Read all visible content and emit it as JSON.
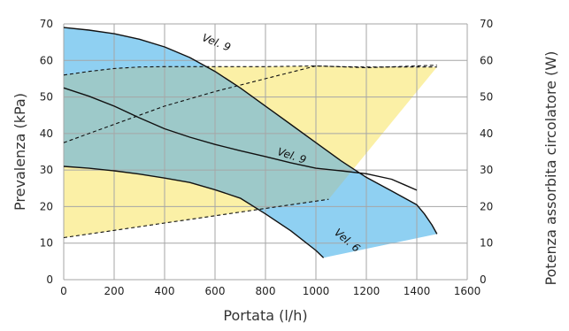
{
  "chart_data": {
    "type": "line",
    "xlabel": "Portata (l/h)",
    "ylabel": "Prevalenza (kPa)",
    "y2label": "Potenza assorbita circolatore (W)",
    "xlim": [
      0,
      1600
    ],
    "ylim": [
      0,
      70
    ],
    "y2lim": [
      0,
      70
    ],
    "xticks": [
      0,
      200,
      400,
      600,
      800,
      1000,
      1200,
      1400,
      1600
    ],
    "yticks": [
      0,
      10,
      20,
      30,
      40,
      50,
      60,
      70
    ],
    "y2ticks": [
      0,
      10,
      20,
      30,
      40,
      50,
      60,
      70
    ],
    "grid": true,
    "colors": {
      "head_fill": "#8fd0f2",
      "power_fill": "#fbf0a6",
      "overlap_fill": "#9dc9c9",
      "line": "#111111",
      "grid": "#a6a6a6"
    },
    "annotations": [
      {
        "text": "Vel. 9",
        "x": 600,
        "y": 64,
        "angle": 22
      },
      {
        "text": "Vel. 9",
        "x": 900,
        "y": 33,
        "angle": 18
      },
      {
        "text": "Vel. 6",
        "x": 1115,
        "y": 10,
        "angle": 40
      }
    ],
    "series": [
      {
        "kind": "head",
        "role": "max",
        "values": [
          [
            0,
            69
          ],
          [
            100,
            68.3
          ],
          [
            200,
            67.3
          ],
          [
            300,
            65.8
          ],
          [
            400,
            63.7
          ],
          [
            500,
            60.8
          ],
          [
            600,
            57
          ],
          [
            700,
            52.5
          ],
          [
            800,
            47.5
          ],
          [
            900,
            42.5
          ],
          [
            1000,
            37.5
          ],
          [
            1100,
            32.5
          ],
          [
            1200,
            28
          ],
          [
            1300,
            24.3
          ],
          [
            1400,
            20.5
          ],
          [
            1430,
            18
          ],
          [
            1460,
            15
          ],
          [
            1480,
            12.5
          ]
        ]
      },
      {
        "kind": "head",
        "role": "mid",
        "values": [
          [
            0,
            52.5
          ],
          [
            100,
            50.2
          ],
          [
            200,
            47.5
          ],
          [
            300,
            44.3
          ],
          [
            400,
            41.3
          ],
          [
            500,
            39
          ],
          [
            600,
            37
          ],
          [
            700,
            35.3
          ],
          [
            800,
            33.7
          ],
          [
            900,
            32
          ],
          [
            1000,
            30.5
          ],
          [
            1100,
            29.8
          ],
          [
            1200,
            29
          ],
          [
            1300,
            27.5
          ],
          [
            1350,
            26
          ],
          [
            1400,
            24.5
          ]
        ]
      },
      {
        "kind": "head",
        "role": "min",
        "values": [
          [
            0,
            31
          ],
          [
            100,
            30.5
          ],
          [
            200,
            29.8
          ],
          [
            300,
            28.9
          ],
          [
            400,
            27.8
          ],
          [
            500,
            26.6
          ],
          [
            600,
            24.6
          ],
          [
            700,
            22.3
          ],
          [
            800,
            18
          ],
          [
            900,
            13.4
          ],
          [
            1000,
            8
          ],
          [
            1030,
            6
          ]
        ]
      },
      {
        "kind": "power",
        "role": "max",
        "values": [
          [
            0,
            56
          ],
          [
            100,
            57
          ],
          [
            200,
            57.8
          ],
          [
            300,
            58.2
          ],
          [
            400,
            58.3
          ],
          [
            600,
            58.3
          ],
          [
            800,
            58.3
          ],
          [
            900,
            58.4
          ],
          [
            1000,
            58.5
          ],
          [
            1100,
            58.3
          ],
          [
            1200,
            58.2
          ],
          [
            1300,
            58.2
          ],
          [
            1400,
            58.2
          ],
          [
            1480,
            58.2
          ]
        ]
      },
      {
        "kind": "power",
        "role": "mid",
        "values": [
          [
            0,
            37.5
          ],
          [
            200,
            42.5
          ],
          [
            400,
            47.5
          ],
          [
            600,
            51.5
          ],
          [
            800,
            55
          ],
          [
            1000,
            58.5
          ],
          [
            1200,
            58
          ],
          [
            1480,
            58.7
          ]
        ]
      },
      {
        "kind": "power",
        "role": "min",
        "values": [
          [
            0,
            11.5
          ],
          [
            200,
            13.5
          ],
          [
            400,
            15.5
          ],
          [
            600,
            17.5
          ],
          [
            800,
            19.5
          ],
          [
            1050,
            22
          ]
        ]
      }
    ]
  }
}
